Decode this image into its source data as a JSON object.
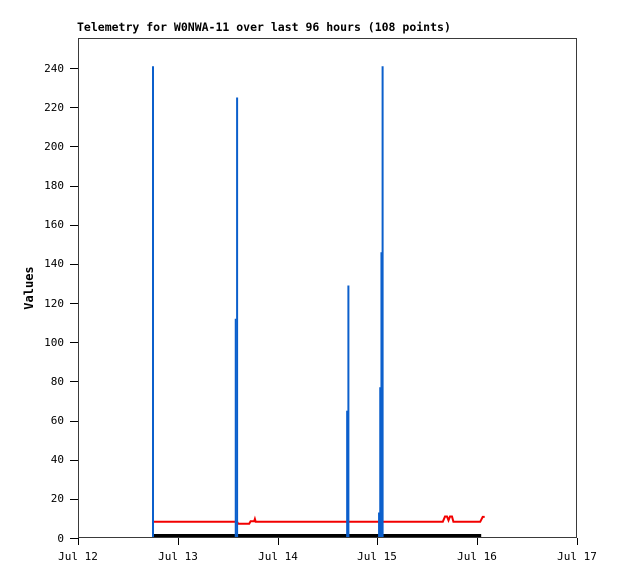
{
  "title": "Telemetry for W0NWA-11 over last 96 hours (108 points)",
  "colors": {
    "background": "#ffffff",
    "spike_blue": "#0b5fcc",
    "line_red": "#f20000",
    "line_black": "#000000",
    "plot_border": "#3a3a3a",
    "text": "#000000"
  },
  "chart_data": {
    "type": "line",
    "title": "Telemetry for W0NWA-11 over last 96 hours (108 points)",
    "xlabel": "",
    "ylabel": "Values",
    "x_tick_labels": [
      "Jul 12",
      "Jul 13",
      "Jul 14",
      "Jul 15",
      "Jul 16",
      "Jul 17"
    ],
    "y_ticks": [
      0,
      20,
      40,
      60,
      80,
      100,
      120,
      140,
      160,
      180,
      200,
      220,
      240
    ],
    "ylim": [
      0,
      255.4
    ],
    "x_span_days": 5,
    "grid": false,
    "legend": "none",
    "series": [
      {
        "name": "blue-telemetry-spikes",
        "style": "impulse",
        "color": "#0b5fcc",
        "points": [
          {
            "day": 0.752,
            "value": 241,
            "w": 2
          },
          {
            "day": 1.578,
            "value": 112,
            "w": 1.5
          },
          {
            "day": 1.594,
            "value": 225,
            "w": 2
          },
          {
            "day": 2.694,
            "value": 65,
            "w": 1.5
          },
          {
            "day": 2.709,
            "value": 129,
            "w": 2
          },
          {
            "day": 3.014,
            "value": 13,
            "w": 1.5
          },
          {
            "day": 3.026,
            "value": 77,
            "w": 1.5
          },
          {
            "day": 3.038,
            "value": 146,
            "w": 1.5
          },
          {
            "day": 3.052,
            "value": 241,
            "w": 2
          }
        ]
      },
      {
        "name": "red-telemetry-channel",
        "style": "line",
        "color": "#f20000",
        "width": 2,
        "points": [
          [
            0.752,
            8.3
          ],
          [
            1.594,
            8.3
          ],
          [
            1.605,
            7.3
          ],
          [
            1.715,
            7.3
          ],
          [
            1.729,
            8.6
          ],
          [
            1.766,
            8.6
          ],
          [
            1.773,
            9.7
          ],
          [
            1.781,
            8.3
          ],
          [
            3.655,
            8.3
          ],
          [
            3.677,
            11.0
          ],
          [
            3.697,
            11.0
          ],
          [
            3.712,
            9.0
          ],
          [
            3.727,
            11.0
          ],
          [
            3.747,
            11.0
          ],
          [
            3.762,
            8.3
          ],
          [
            4.03,
            8.3
          ],
          [
            4.055,
            10.8
          ],
          [
            4.075,
            10.8
          ]
        ]
      },
      {
        "name": "black-telemetry-channel",
        "style": "line",
        "color": "#000000",
        "width": 3,
        "points": [
          [
            0.752,
            1.3
          ],
          [
            4.04,
            1.3
          ]
        ]
      }
    ]
  }
}
